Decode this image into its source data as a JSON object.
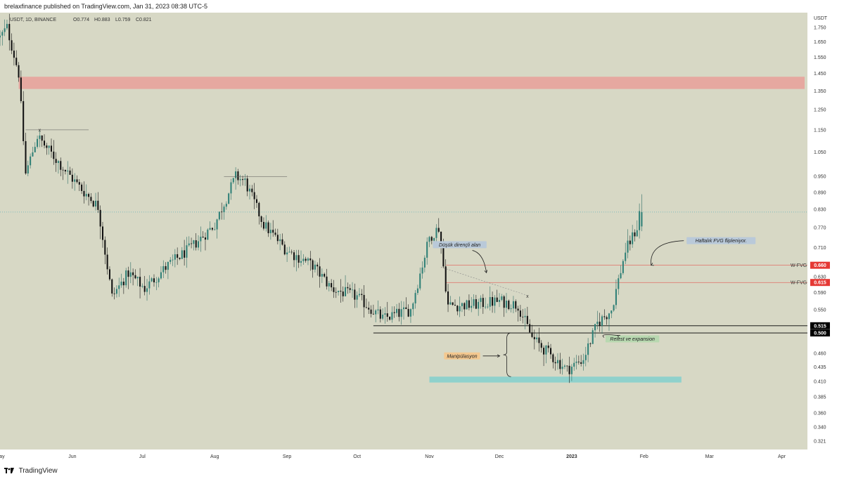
{
  "header": {
    "published_text": "brelaxfinance published on TradingView.com, Jan 31, 2023 08:38 UTC-5"
  },
  "footer": {
    "brand": "TradingView"
  },
  "legend": {
    "symbol": "USDT, 1D, BINANCE",
    "open": "O0.774",
    "high": "H0.883",
    "low": "L0.759",
    "close": "C0.821"
  },
  "chart_data": {
    "type": "candlestick",
    "currency_label": "USDT",
    "y_scale": "log",
    "ylim": [
      0.31,
      1.86
    ],
    "y_ticks": [
      "1.750",
      "1.650",
      "1.550",
      "1.450",
      "1.350",
      "1.250",
      "1.150",
      "1.050",
      "0.950",
      "0.890",
      "0.830",
      "0.770",
      "0.710",
      "0.670",
      "0.630",
      "0.590",
      "0.550",
      "0.515",
      "0.495",
      "0.460",
      "0.435",
      "0.410",
      "0.385",
      "0.360",
      "0.340",
      "0.321"
    ],
    "x_ticks": [
      {
        "label": "May",
        "date": "2022-05-01"
      },
      {
        "label": "Jun",
        "date": "2022-06-01"
      },
      {
        "label": "Jul",
        "date": "2022-07-01"
      },
      {
        "label": "Aug",
        "date": "2022-08-01"
      },
      {
        "label": "Sep",
        "date": "2022-09-01"
      },
      {
        "label": "Oct",
        "date": "2022-10-01"
      },
      {
        "label": "Nov",
        "date": "2022-11-01"
      },
      {
        "label": "Dec",
        "date": "2022-12-01"
      },
      {
        "label": "2023",
        "date": "2023-01-01"
      },
      {
        "label": "Feb",
        "date": "2023-02-01"
      },
      {
        "label": "Mar",
        "date": "2023-03-01"
      },
      {
        "label": "Apr",
        "date": "2023-04-01"
      }
    ],
    "xlim": [
      "2022-05-01",
      "2023-04-12"
    ],
    "price_waypoints": [
      {
        "date": "2022-05-01",
        "price": 1.68
      },
      {
        "date": "2022-05-04",
        "price": 1.75
      },
      {
        "date": "2022-05-09",
        "price": 1.45
      },
      {
        "date": "2022-05-12",
        "price": 0.96
      },
      {
        "date": "2022-05-17",
        "price": 1.12
      },
      {
        "date": "2022-05-25",
        "price": 1.02
      },
      {
        "date": "2022-06-03",
        "price": 0.92
      },
      {
        "date": "2022-06-12",
        "price": 0.84
      },
      {
        "date": "2022-06-18",
        "price": 0.58
      },
      {
        "date": "2022-06-25",
        "price": 0.64
      },
      {
        "date": "2022-07-02",
        "price": 0.6
      },
      {
        "date": "2022-07-12",
        "price": 0.66
      },
      {
        "date": "2022-07-22",
        "price": 0.71
      },
      {
        "date": "2022-08-01",
        "price": 0.78
      },
      {
        "date": "2022-08-10",
        "price": 0.95
      },
      {
        "date": "2022-08-14",
        "price": 0.93
      },
      {
        "date": "2022-08-22",
        "price": 0.78
      },
      {
        "date": "2022-09-01",
        "price": 0.7
      },
      {
        "date": "2022-09-12",
        "price": 0.66
      },
      {
        "date": "2022-09-20",
        "price": 0.6
      },
      {
        "date": "2022-10-01",
        "price": 0.58
      },
      {
        "date": "2022-10-12",
        "price": 0.53
      },
      {
        "date": "2022-10-24",
        "price": 0.55
      },
      {
        "date": "2022-11-01",
        "price": 0.74
      },
      {
        "date": "2022-11-05",
        "price": 0.77
      },
      {
        "date": "2022-11-09",
        "price": 0.56
      },
      {
        "date": "2022-11-18",
        "price": 0.56
      },
      {
        "date": "2022-12-01",
        "price": 0.57
      },
      {
        "date": "2022-12-09",
        "price": 0.56
      },
      {
        "date": "2022-12-15",
        "price": 0.49
      },
      {
        "date": "2022-12-22",
        "price": 0.46
      },
      {
        "date": "2022-12-30",
        "price": 0.43
      },
      {
        "date": "2023-01-06",
        "price": 0.45
      },
      {
        "date": "2023-01-12",
        "price": 0.52
      },
      {
        "date": "2023-01-18",
        "price": 0.55
      },
      {
        "date": "2023-01-24",
        "price": 0.7
      },
      {
        "date": "2023-01-29",
        "price": 0.77
      },
      {
        "date": "2023-01-30",
        "price": 0.82
      },
      {
        "date": "2023-01-31",
        "price": 0.821
      }
    ],
    "last_candle": {
      "date": "2023-01-31",
      "open": 0.774,
      "high": 0.883,
      "low": 0.759,
      "close": 0.821
    },
    "current_price_line": 0.821,
    "zones": [
      {
        "name": "resistance-zone",
        "y1": 1.36,
        "y2": 1.43,
        "x1": "2022-05-09",
        "x2": "2023-04-12",
        "color": "#e6a8a0"
      },
      {
        "name": "support-zone",
        "y1": 0.408,
        "y2": 0.418,
        "x1": "2022-11-01",
        "x2": "2023-02-17",
        "color": "#8fd1cc"
      }
    ],
    "levels": [
      {
        "name": "w-fvg-upper",
        "label": "W-FVG",
        "value": 0.66,
        "value_label": "0.660",
        "color": "#e53935",
        "x1": "2022-11-08"
      },
      {
        "name": "w-fvg-lower",
        "label": "W-FVG",
        "value": 0.615,
        "value_label": "0.615",
        "color": "#e53935",
        "x1": "2022-11-08"
      },
      {
        "name": "range-high",
        "value": 0.515,
        "value_label": "0.515",
        "color": "#000000",
        "x1": "2022-10-08"
      },
      {
        "name": "range-low",
        "value": 0.5,
        "value_label": "0.500",
        "color": "#000000",
        "x1": "2022-10-08"
      }
    ],
    "swing_marks": [
      {
        "label": "x",
        "date": "2022-05-18",
        "price": 1.15,
        "line_to": "2022-06-08"
      },
      {
        "label": "x",
        "date": "2022-08-11",
        "price": 0.95,
        "line_to": "2022-09-01"
      },
      {
        "label": "x",
        "date": "2022-12-13",
        "price": 0.582
      }
    ],
    "annotations": [
      {
        "name": "low-resistance-label",
        "text": "Düşük dirençli alan",
        "date": "2022-11-14",
        "price": 0.718,
        "bg": "#b9c9d9"
      },
      {
        "name": "weekly-fvg-flip-label",
        "text": "Haftalık FVG flipleniyor.",
        "date": "2023-03-06",
        "price": 0.73,
        "bg": "#b9c9d9"
      },
      {
        "name": "manipulation-label",
        "text": "Manipülasyon",
        "date": "2022-11-15",
        "price": 0.455,
        "bg": "#f4c88f"
      },
      {
        "name": "retest-label",
        "text": "Retest ve expansion",
        "date": "2023-01-27",
        "price": 0.488,
        "bg": "#b8d8b0"
      }
    ]
  }
}
